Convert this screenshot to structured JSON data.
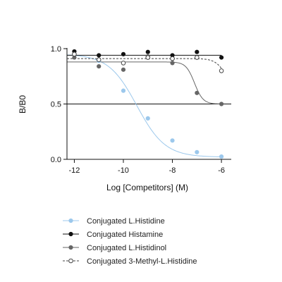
{
  "chart_data": {
    "type": "scatter",
    "xlabel": "Log [Competitors] (M)",
    "ylabel": "B/B0",
    "xlim": [
      -12.3,
      -5.6
    ],
    "ylim": [
      0,
      1.0
    ],
    "xticks": [
      -12,
      -10,
      -8,
      -6
    ],
    "xticklabels": [
      "-12",
      "-10",
      "-8",
      "-6"
    ],
    "yticks": [
      0.0,
      0.5,
      1.0
    ],
    "yticklabels": [
      "0.0",
      "0.5",
      "1.0"
    ],
    "reference_line": {
      "y": 0.5
    },
    "grid": false,
    "legend_position": "bottom",
    "series": [
      {
        "name": "Conjugated L.Histidine",
        "color": "#9cc8ec",
        "marker": "filled-circle",
        "line_style": "solid",
        "x": [
          -12,
          -11,
          -10,
          -9,
          -8,
          -7,
          -6
        ],
        "y": [
          0.95,
          0.89,
          0.62,
          0.37,
          0.17,
          0.065,
          0.025
        ],
        "fit": {
          "model": "sigmoid",
          "top": 0.95,
          "bottom": 0.02,
          "logIC50": -9.45,
          "hill": -0.75
        }
      },
      {
        "name": "Conjugated Histamine",
        "color": "#111111",
        "marker": "filled-circle",
        "line_style": "solid",
        "x": [
          -12,
          -11,
          -10,
          -9,
          -8,
          -7,
          -6
        ],
        "y": [
          0.975,
          0.94,
          0.95,
          0.97,
          0.94,
          0.97,
          0.92
        ],
        "fit": {
          "model": "flat",
          "value": 0.94
        }
      },
      {
        "name": "Conjugated L.Histidinol",
        "color": "#666666",
        "marker": "filled-circle",
        "line_style": "solid",
        "x": [
          -12,
          -11,
          -10,
          -9,
          -8,
          -7,
          -6
        ],
        "y": [
          0.92,
          0.84,
          0.81,
          0.93,
          0.87,
          0.6,
          0.5
        ],
        "fit": {
          "model": "sigmoid",
          "top": 0.88,
          "bottom": 0.5,
          "logIC50": -7.1,
          "hill": -2.5
        }
      },
      {
        "name": "Conjugated 3-Methyl-L.Histidine",
        "color": "#444444",
        "marker": "open-circle",
        "line_style": "dashed",
        "x": [
          -12,
          -11,
          -10,
          -9,
          -8,
          -7,
          -6
        ],
        "y": [
          0.95,
          0.9,
          0.87,
          0.92,
          0.91,
          0.92,
          0.8
        ],
        "fit": {
          "model": "sigmoid",
          "top": 0.91,
          "bottom": 0.6,
          "logIC50": -5.8,
          "hill": -2.0
        }
      }
    ]
  }
}
